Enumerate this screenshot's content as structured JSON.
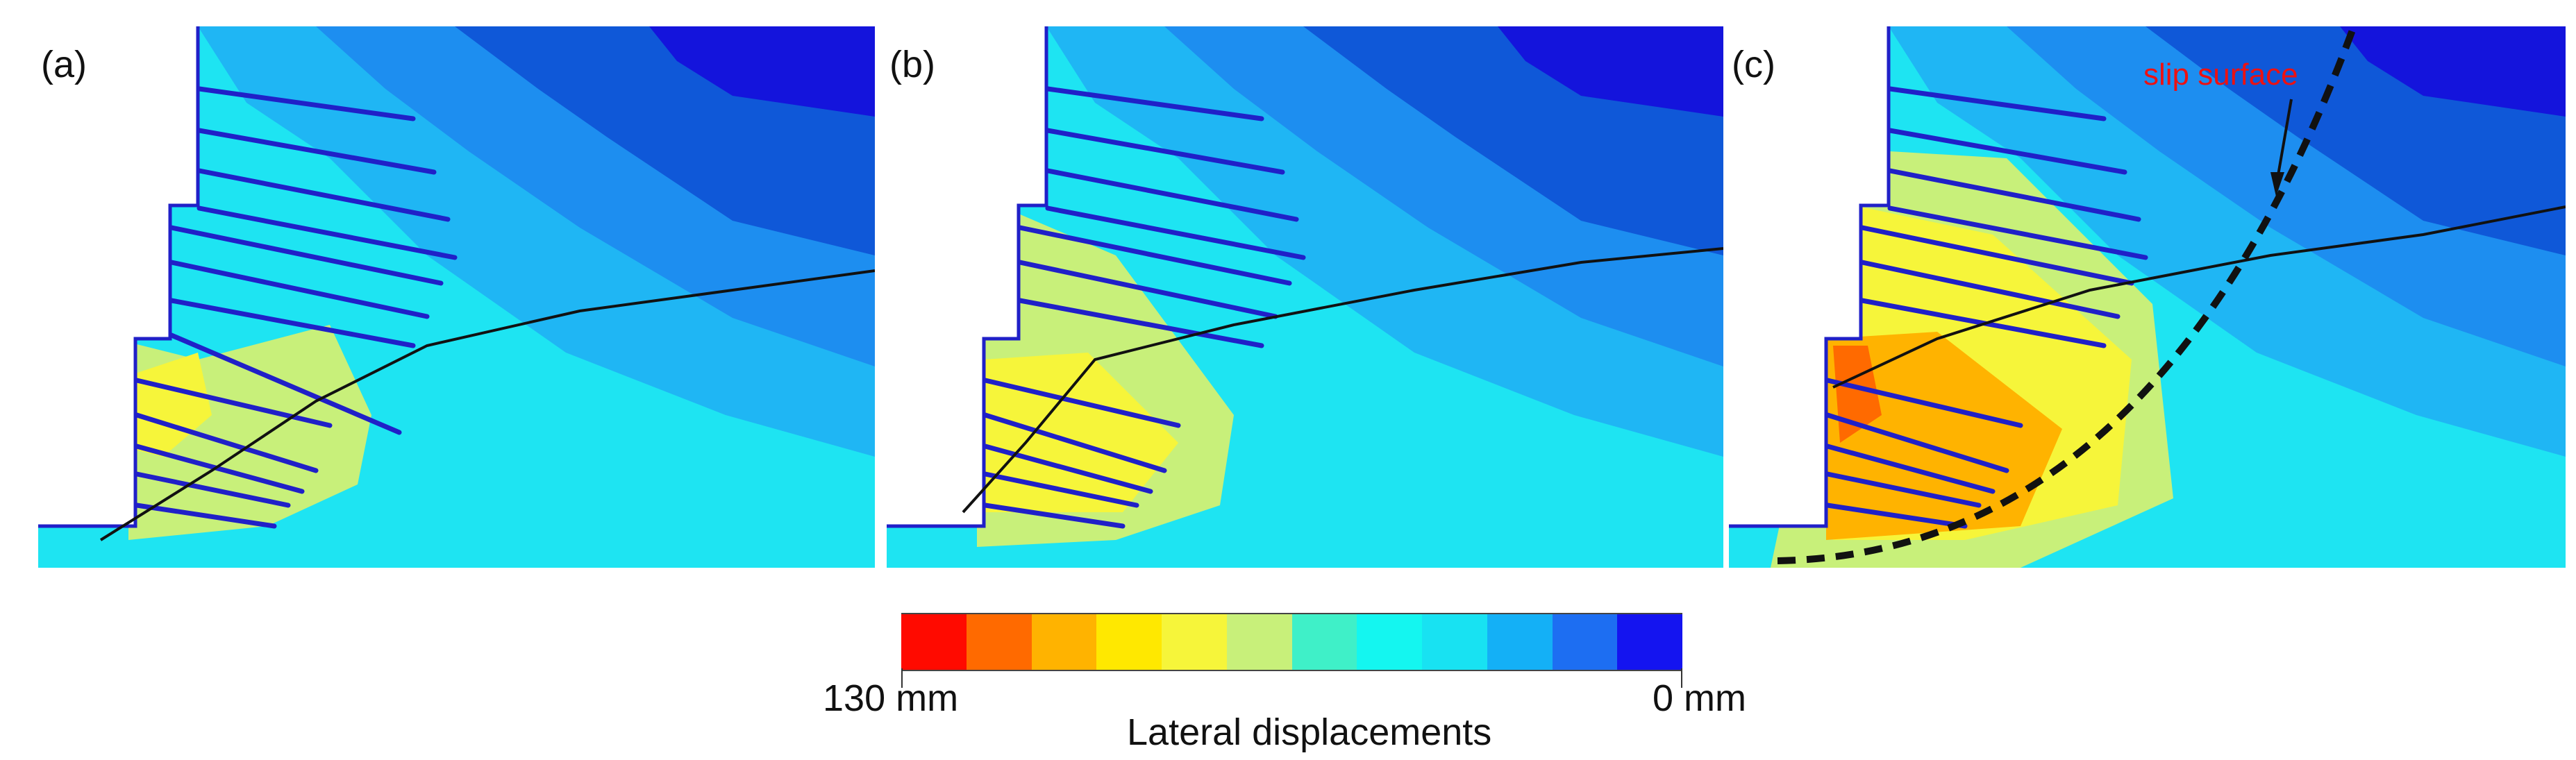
{
  "panels": [
    {
      "label": "(a)"
    },
    {
      "label": "(b)"
    },
    {
      "label": "(c)",
      "annotation": "slip surface"
    }
  ],
  "legend": {
    "max_label": "130 mm",
    "min_label": "0 mm",
    "title": "Lateral displacements",
    "colors": [
      "#ff0a00",
      "#ff6a00",
      "#ffb300",
      "#ffe800",
      "#f6f53a",
      "#c8f07a",
      "#3ff0c8",
      "#14f6f0",
      "#18e2f2",
      "#14b0f6",
      "#1d6ef2",
      "#1414f0"
    ]
  },
  "colors": {
    "deep_blue": "#1414dc",
    "dark_blue": "#0f58d8",
    "mid_blue": "#1d8ef0",
    "light_blue": "#1fb6f4",
    "cyan": "#1ee4f2",
    "nail": "#2020c8",
    "slip_line": "#111111"
  }
}
